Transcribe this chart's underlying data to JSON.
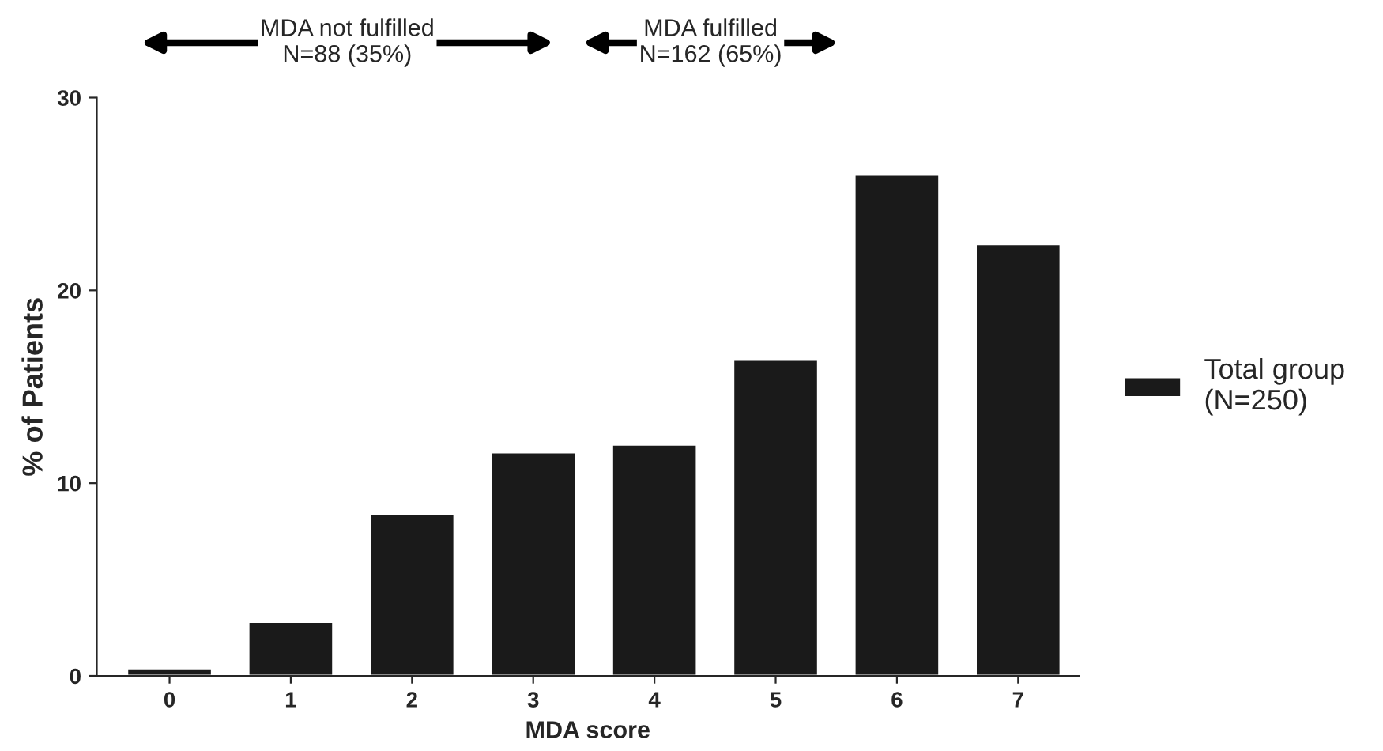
{
  "chart_data": {
    "type": "bar",
    "xlabel": "MDA score",
    "ylabel": "% of Patients",
    "categories": [
      "0",
      "1",
      "2",
      "3",
      "4",
      "5",
      "6",
      "7"
    ],
    "series": [
      {
        "name": "Total group\n(N=250)",
        "color": "#1a1a1a",
        "values": [
          0.4,
          2.8,
          8.4,
          11.6,
          12.0,
          16.4,
          26.0,
          22.4
        ]
      }
    ],
    "ylim": [
      0,
      30
    ],
    "yticks": [
      0,
      10,
      20,
      30
    ],
    "grid": false,
    "legend": "right",
    "annotations": [
      "MDA not fulfilled\nN=88 (35%)",
      "MDA fulfilled\nN=162 (65%)"
    ]
  }
}
